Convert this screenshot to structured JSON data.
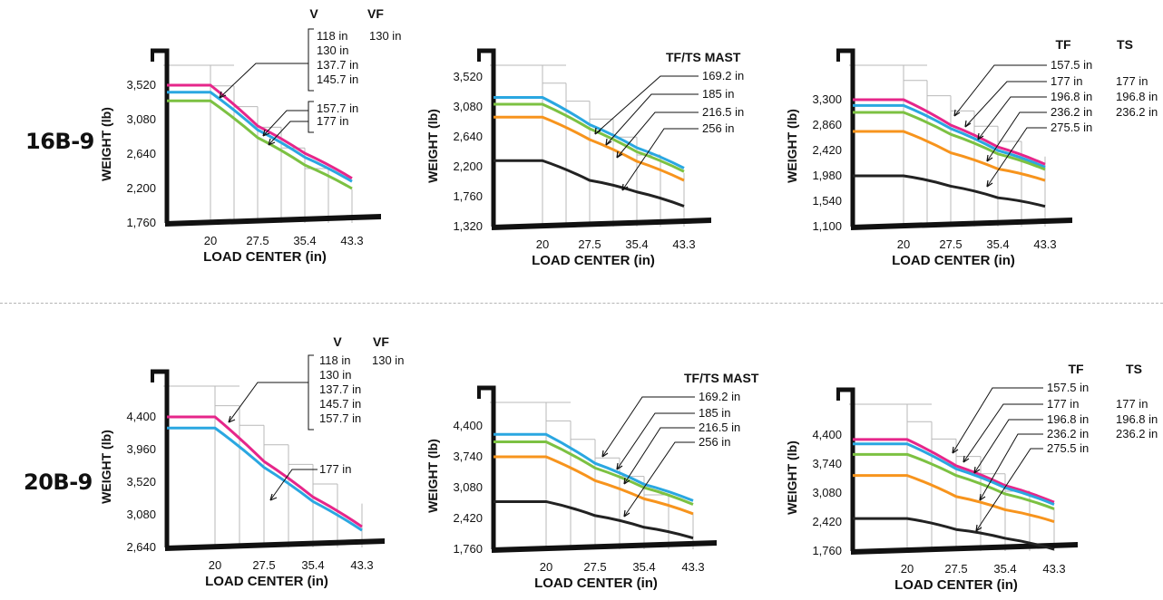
{
  "models": [
    {
      "label": "16B-9"
    },
    {
      "label": "20B-9"
    }
  ],
  "chart_data": [
    {
      "type": "line",
      "model": "16B-9",
      "xlabel": "LOAD CENTER (in)",
      "ylabel": "WEIGHT (lb)",
      "xtick_labels": [
        "20",
        "27.5",
        "35.4",
        "43.3"
      ],
      "ytick_labels": [
        "1,760",
        "2,200",
        "2,640",
        "3,080",
        "3,520"
      ],
      "column_headers": [
        "V",
        "VF"
      ],
      "mast_lists": [
        [
          "118 in",
          "130 in",
          "137.7 in",
          "145.7 in"
        ],
        [
          "157.7 in",
          "177 in"
        ]
      ],
      "vf_list": [
        "130 in"
      ],
      "series": [
        {
          "color": "#e6268a",
          "x": [
            20,
            27.5,
            35.4,
            43.3
          ],
          "y": [
            3520,
            3000,
            2650,
            2330
          ]
        },
        {
          "color": "#2aa7e1",
          "x": [
            20,
            27.5,
            35.4,
            43.3
          ],
          "y": [
            3430,
            2950,
            2600,
            2290
          ]
        },
        {
          "color": "#7cc142",
          "x": [
            20,
            27.5,
            35.4,
            43.3
          ],
          "y": [
            3320,
            2850,
            2500,
            2200
          ]
        }
      ]
    },
    {
      "type": "line",
      "model": "16B-9",
      "xlabel": "LOAD CENTER (in)",
      "ylabel": "WEIGHT (lb)",
      "xtick_labels": [
        "20",
        "27.5",
        "35.4",
        "43.3"
      ],
      "ytick_labels": [
        "1,320",
        "1,760",
        "2,200",
        "2,640",
        "3,080",
        "3,520"
      ],
      "title": "TF/TS MAST",
      "mast_list": [
        "169.2 in",
        "185 in",
        "216.5 in",
        "256 in"
      ],
      "series": [
        {
          "color": "#2aa7e1",
          "x": [
            20,
            27.5,
            35.4,
            43.3
          ],
          "y": [
            3220,
            2820,
            2480,
            2180
          ]
        },
        {
          "color": "#7cc142",
          "x": [
            20,
            27.5,
            35.4,
            43.3
          ],
          "y": [
            3120,
            2760,
            2420,
            2130
          ]
        },
        {
          "color": "#f7941d",
          "x": [
            20,
            27.5,
            35.4,
            43.3
          ],
          "y": [
            2930,
            2600,
            2280,
            2000
          ]
        },
        {
          "color": "#222222",
          "x": [
            20,
            27.5,
            35.4,
            43.3
          ],
          "y": [
            2290,
            2000,
            1830,
            1620
          ]
        }
      ]
    },
    {
      "type": "line",
      "model": "16B-9",
      "xlabel": "LOAD CENTER (in)",
      "ylabel": "WEIGHT (lb)",
      "xtick_labels": [
        "20",
        "27.5",
        "35.4",
        "43.3"
      ],
      "ytick_labels": [
        "1,100",
        "1,540",
        "1,980",
        "2,420",
        "2,860",
        "3,300"
      ],
      "column_headers": [
        "TF",
        "TS"
      ],
      "tf_list": [
        "157.5 in",
        "177 in",
        "196.8 in",
        "236.2 in",
        "275.5 in"
      ],
      "ts_list": [
        "177 in",
        "196.8 in",
        "236.2 in"
      ],
      "series": [
        {
          "color": "#e6268a",
          "x": [
            20,
            27.5,
            35.4,
            43.3
          ],
          "y": [
            3300,
            2860,
            2480,
            2180
          ]
        },
        {
          "color": "#2aa7e1",
          "x": [
            20,
            27.5,
            35.4,
            43.3
          ],
          "y": [
            3200,
            2800,
            2420,
            2130
          ]
        },
        {
          "color": "#7cc142",
          "x": [
            20,
            27.5,
            35.4,
            43.3
          ],
          "y": [
            3080,
            2700,
            2360,
            2090
          ]
        },
        {
          "color": "#f7941d",
          "x": [
            20,
            27.5,
            35.4,
            43.3
          ],
          "y": [
            2750,
            2380,
            2100,
            1900
          ]
        },
        {
          "color": "#222222",
          "x": [
            20,
            27.5,
            35.4,
            43.3
          ],
          "y": [
            1980,
            1800,
            1600,
            1450
          ]
        }
      ]
    },
    {
      "type": "line",
      "model": "20B-9",
      "xlabel": "LOAD CENTER (in)",
      "ylabel": "WEIGHT (lb)",
      "xtick_labels": [
        "20",
        "27.5",
        "35.4",
        "43.3"
      ],
      "ytick_labels": [
        "2,640",
        "3,080",
        "3,520",
        "3,960",
        "4,400"
      ],
      "column_headers": [
        "V",
        "VF"
      ],
      "mast_lists": [
        [
          "118 in",
          "130 in",
          "137.7 in",
          "145.7 in",
          "157.7 in"
        ],
        [
          "177 in"
        ]
      ],
      "vf_list": [
        "130 in"
      ],
      "series": [
        {
          "color": "#e6268a",
          "x": [
            20,
            27.5,
            35.4,
            43.3
          ],
          "y": [
            4400,
            3800,
            3320,
            2920
          ]
        },
        {
          "color": "#2aa7e1",
          "x": [
            20,
            27.5,
            35.4,
            43.3
          ],
          "y": [
            4250,
            3720,
            3260,
            2870
          ]
        }
      ]
    },
    {
      "type": "line",
      "model": "20B-9",
      "xlabel": "LOAD CENTER (in)",
      "ylabel": "WEIGHT (lb)",
      "xtick_labels": [
        "20",
        "27.5",
        "35.4",
        "43.3"
      ],
      "ytick_labels": [
        "1,760",
        "2,420",
        "3,080",
        "3,740",
        "4,400"
      ],
      "title": "TF/TS MAST",
      "mast_list": [
        "169.2 in",
        "185 in",
        "216.5 in",
        "256 in"
      ],
      "series": [
        {
          "color": "#2aa7e1",
          "x": [
            20,
            27.5,
            35.4,
            43.3
          ],
          "y": [
            4220,
            3600,
            3150,
            2800
          ]
        },
        {
          "color": "#7cc142",
          "x": [
            20,
            27.5,
            35.4,
            43.3
          ],
          "y": [
            4060,
            3500,
            3080,
            2720
          ]
        },
        {
          "color": "#f7941d",
          "x": [
            20,
            27.5,
            35.4,
            43.3
          ],
          "y": [
            3740,
            3230,
            2840,
            2520
          ]
        },
        {
          "color": "#222222",
          "x": [
            20,
            27.5,
            35.4,
            43.3
          ],
          "y": [
            2780,
            2480,
            2230,
            2000
          ]
        }
      ]
    },
    {
      "type": "line",
      "model": "20B-9",
      "xlabel": "LOAD CENTER (in)",
      "ylabel": "WEIGHT (lb)",
      "xtick_labels": [
        "20",
        "27.5",
        "35.4",
        "43.3"
      ],
      "ytick_labels": [
        "1,760",
        "2,420",
        "3,080",
        "3,740",
        "4,400"
      ],
      "column_headers": [
        "TF",
        "TS"
      ],
      "tf_list": [
        "157.5 in",
        "177 in",
        "196.8 in",
        "236.2 in",
        "275.5 in"
      ],
      "ts_list": [
        "177 in",
        "196.8 in",
        "236.2 in"
      ],
      "series": [
        {
          "color": "#e6268a",
          "x": [
            20,
            27.5,
            35.4,
            43.3
          ],
          "y": [
            4300,
            3700,
            3250,
            2870
          ]
        },
        {
          "color": "#2aa7e1",
          "x": [
            20,
            27.5,
            35.4,
            43.3
          ],
          "y": [
            4200,
            3630,
            3200,
            2820
          ]
        },
        {
          "color": "#7cc142",
          "x": [
            20,
            27.5,
            35.4,
            43.3
          ],
          "y": [
            3960,
            3480,
            3060,
            2720
          ]
        },
        {
          "color": "#f7941d",
          "x": [
            20,
            27.5,
            35.4,
            43.3
          ],
          "y": [
            3480,
            3000,
            2700,
            2430
          ]
        },
        {
          "color": "#222222",
          "x": [
            20,
            27.5,
            35.4,
            43.3
          ],
          "y": [
            2500,
            2250,
            2050,
            1800
          ]
        }
      ]
    }
  ]
}
